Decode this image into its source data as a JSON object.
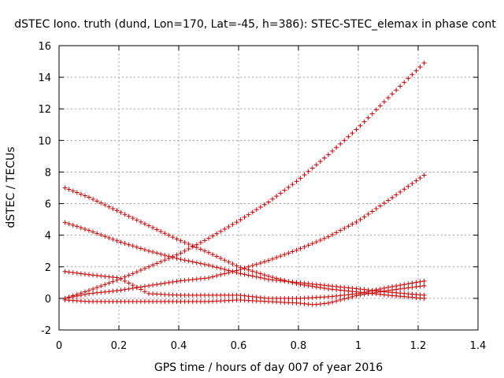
{
  "chart_data": {
    "type": "scatter",
    "title": "dSTEC Iono. truth (dund, Lon=170, Lat=-45, h=386): STEC-STEC_elemax in phase cont",
    "xlabel": "GPS time / hours of day 007 of year 2016",
    "ylabel": "dSTEC  / TECUs",
    "xlim": [
      0,
      1.4
    ],
    "ylim": [
      -2,
      16
    ],
    "x_ticks": [
      0,
      0.2,
      0.4,
      0.6,
      0.8,
      1,
      1.2,
      1.4
    ],
    "x_tick_labels": [
      "0",
      "0.2",
      "0.4",
      "0.6",
      "0.8",
      "1",
      "1.2",
      "1.4"
    ],
    "y_ticks": [
      -2,
      0,
      2,
      4,
      6,
      8,
      10,
      12,
      14,
      16
    ],
    "y_tick_labels": [
      "-2",
      "0",
      "2",
      "4",
      "6",
      "8",
      "10",
      "12",
      "14",
      "16"
    ],
    "grid": true,
    "marker": "plus",
    "marker_color": "#cc0000",
    "series": [
      {
        "x": [
          0.02,
          0.1,
          0.2,
          0.3,
          0.4,
          0.5,
          0.6,
          0.7,
          0.8,
          0.9,
          1.0,
          1.1,
          1.22
        ],
        "y": [
          0.0,
          0.5,
          1.2,
          2.0,
          2.8,
          3.8,
          4.9,
          6.1,
          7.5,
          9.1,
          10.8,
          12.7,
          14.9
        ]
      },
      {
        "x": [
          0.02,
          0.1,
          0.2,
          0.3,
          0.4,
          0.5,
          0.6,
          0.7,
          0.8,
          0.9,
          1.0,
          1.1,
          1.22
        ],
        "y": [
          0.0,
          0.3,
          0.5,
          0.8,
          1.1,
          1.3,
          1.8,
          2.4,
          3.1,
          3.9,
          4.9,
          6.2,
          7.8
        ]
      },
      {
        "x": [
          0.02,
          0.1,
          0.2,
          0.3,
          0.4,
          0.5,
          0.6,
          0.7,
          0.8,
          0.9,
          1.0,
          1.1,
          1.22
        ],
        "y": [
          7.0,
          6.4,
          5.5,
          4.6,
          3.7,
          2.9,
          2.0,
          1.4,
          0.9,
          0.6,
          0.4,
          0.2,
          0.0
        ]
      },
      {
        "x": [
          0.02,
          0.1,
          0.2,
          0.3,
          0.4,
          0.5,
          0.6,
          0.7,
          0.8,
          0.9,
          1.0,
          1.1,
          1.22
        ],
        "y": [
          4.8,
          4.3,
          3.6,
          3.0,
          2.5,
          2.1,
          1.6,
          1.2,
          1.0,
          0.8,
          0.6,
          0.4,
          0.2
        ]
      },
      {
        "x": [
          0.02,
          0.1,
          0.2,
          0.25,
          0.3,
          0.4,
          0.5,
          0.6,
          0.7,
          0.8,
          0.9,
          1.0,
          1.1,
          1.22
        ],
        "y": [
          1.7,
          1.5,
          1.3,
          0.8,
          0.3,
          0.2,
          0.2,
          0.2,
          0.0,
          0.0,
          0.1,
          0.3,
          0.7,
          1.1
        ]
      },
      {
        "x": [
          0.02,
          0.1,
          0.2,
          0.3,
          0.4,
          0.5,
          0.6,
          0.7,
          0.8,
          0.85,
          0.9,
          1.0,
          1.1,
          1.22
        ],
        "y": [
          -0.1,
          -0.2,
          -0.2,
          -0.2,
          -0.2,
          -0.2,
          -0.1,
          -0.2,
          -0.3,
          -0.4,
          -0.3,
          0.2,
          0.5,
          0.8
        ]
      }
    ]
  }
}
